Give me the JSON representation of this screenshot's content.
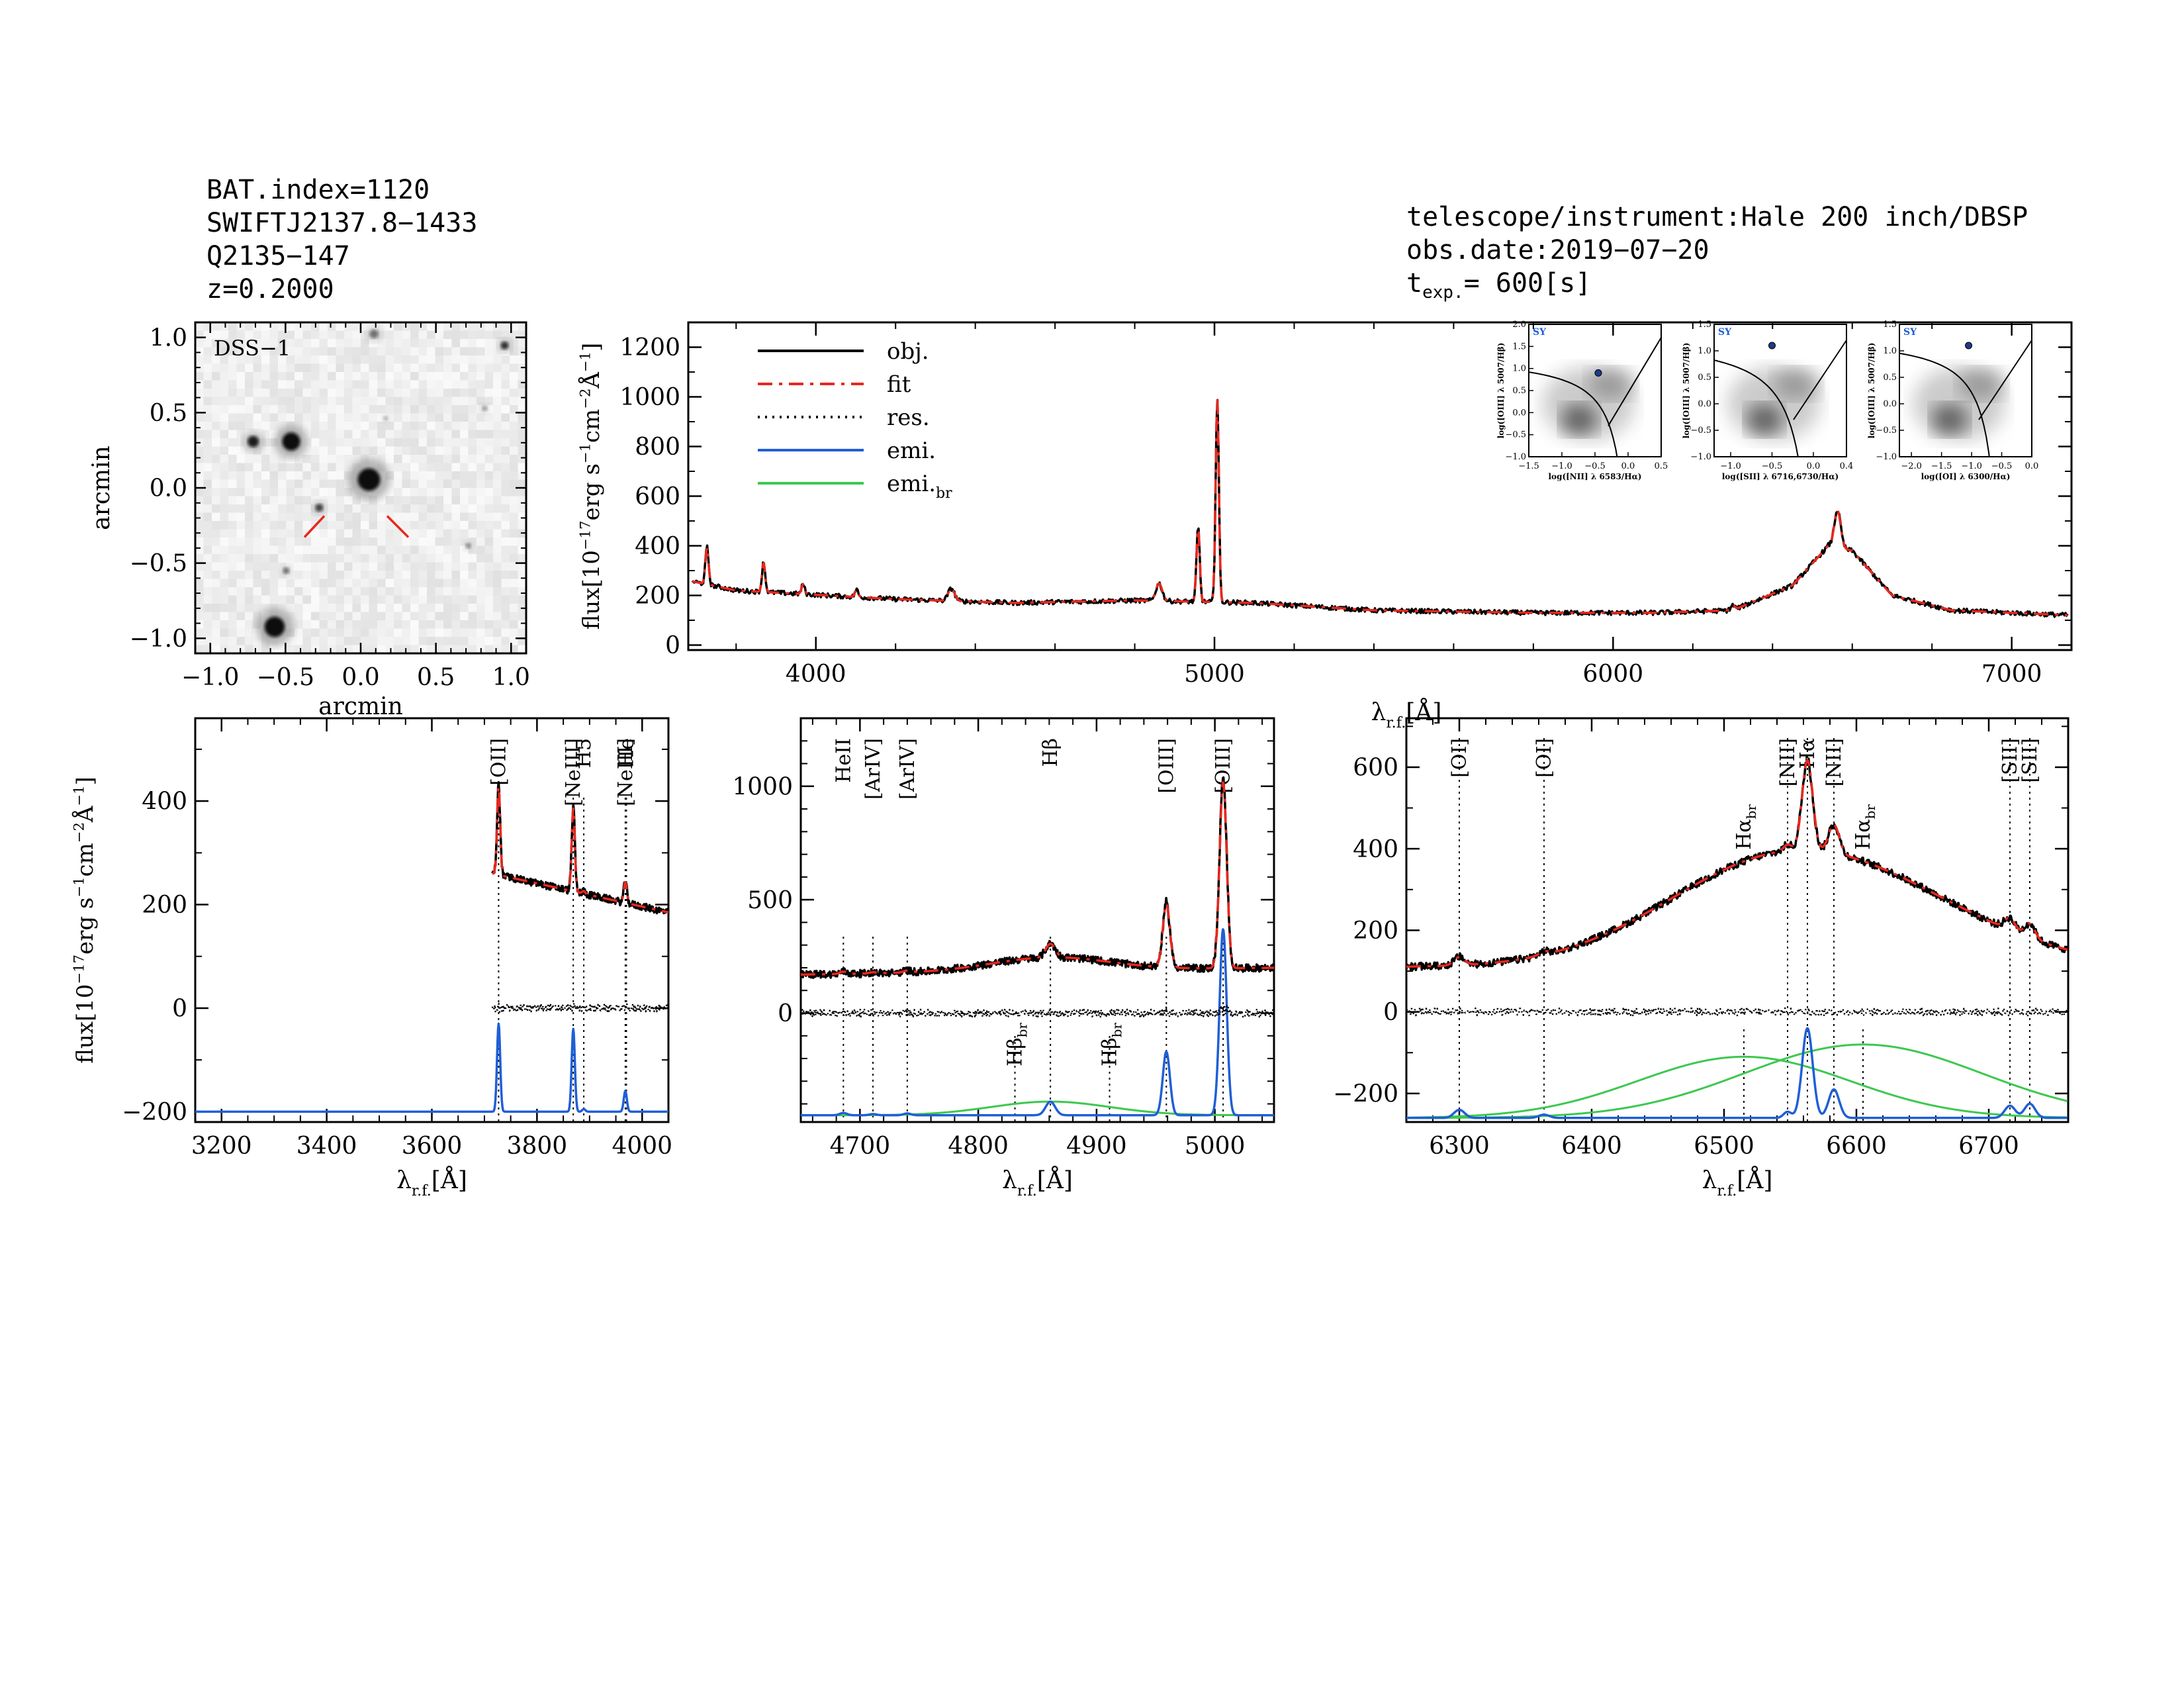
{
  "header_left": {
    "bat_index": "BAT.index=1120",
    "swift_name": "SWIFTJ2137.8−1433",
    "counterpart": "Q2135−147",
    "redshift": "z=0.2000"
  },
  "header_right": {
    "instrument": "telescope/instrument:Hale 200 inch/DBSP",
    "obs_date": "obs.date:2019−07−20",
    "texp_prefix": "t",
    "texp_sub": "exp.",
    "texp_value": "= 600[s]"
  },
  "colors": {
    "obj": "#000000",
    "fit": "#e8281e",
    "res": "#000000",
    "emi": "#1f5fd6",
    "emi_br": "#3cc850",
    "grid_tick": "#000000",
    "sy_label": "#1f5fd6"
  },
  "image_panel": {
    "label": "DSS−1",
    "xlabel": "arcmin",
    "ylabel": "arcmin",
    "xticks": [
      "−1.0",
      "−0.5",
      "0.0",
      "0.5",
      "1.0"
    ],
    "yticks": [
      "1.0",
      "0.5",
      "0.0",
      "−0.5",
      "−1.0"
    ]
  },
  "legend": {
    "obj": "obj.",
    "fit": "fit",
    "res": "res.",
    "emi": "emi.",
    "emi_br_main": "emi.",
    "emi_br_sub": "br"
  },
  "ylabel_flux": {
    "main": "flux[10",
    "exp1": "−17",
    "mid": "erg s",
    "exp2": "−1",
    "mid2": "cm",
    "exp3": "−2",
    "end": "Å",
    "exp4": "−1",
    "close": "]"
  },
  "xlabel_lambda": {
    "main": "λ",
    "sub": "r.f.",
    "unit": "[Å]"
  },
  "bpt": {
    "sy_label": "SY",
    "panels": [
      {
        "xlabel": "log([NII] λ 6583/Hα)",
        "ylabel": "log([OIII] λ 5007/Hβ)",
        "xticks": [
          "−1.5",
          "−1.0",
          "−0.5",
          "0.0",
          "0.5"
        ],
        "yticks": [
          "2.0",
          "1.5",
          "1.0",
          "0.5",
          "0.0",
          "−0.5",
          "−1.0"
        ],
        "xlim": [
          -1.5,
          0.5
        ],
        "ylim": [
          -1.0,
          2.0
        ],
        "point": [
          -0.45,
          0.9
        ]
      },
      {
        "xlabel": "log([SII] λ 6716,6730/Hα)",
        "ylabel": "log([OIII] λ 5007/Hβ)",
        "xticks": [
          "−1.0",
          "−0.5",
          "0.0",
          "0.4"
        ],
        "yticks": [
          "1.5",
          "1.0",
          "0.5",
          "0.0",
          "−0.5",
          "−1.0"
        ],
        "xlim": [
          -1.2,
          0.4
        ],
        "ylim": [
          -1.0,
          1.5
        ],
        "point": [
          -0.5,
          1.1
        ]
      },
      {
        "xlabel": "log([OI] λ 6300/Hα)",
        "ylabel": "log([OIII] λ 5007/Hβ)",
        "xticks": [
          "−2.0",
          "−1.5",
          "−1.0",
          "−0.5",
          "0.0"
        ],
        "yticks": [
          "1.5",
          "1.0",
          "0.5",
          "0.0",
          "−0.5",
          "−1.0"
        ],
        "xlim": [
          -2.2,
          0.0
        ],
        "ylim": [
          -1.0,
          1.5
        ],
        "point": [
          -1.05,
          1.1
        ]
      }
    ]
  },
  "chart_data": [
    {
      "type": "line",
      "panel": "main",
      "xlim": [
        3680,
        7150
      ],
      "ylim": [
        -20,
        1300
      ],
      "xticks": [
        4000,
        5000,
        6000,
        7000
      ],
      "yticks": [
        0,
        200,
        400,
        600,
        800,
        1000,
        1200
      ],
      "continuum_points": [
        [
          3680,
          260
        ],
        [
          3800,
          220
        ],
        [
          4200,
          185
        ],
        [
          4500,
          170
        ],
        [
          4800,
          180
        ],
        [
          5100,
          170
        ],
        [
          5400,
          140
        ],
        [
          5800,
          130
        ],
        [
          6100,
          130
        ],
        [
          6300,
          140
        ],
        [
          6450,
          240
        ],
        [
          6540,
          400
        ],
        [
          6600,
          380
        ],
        [
          6700,
          200
        ],
        [
          6850,
          140
        ],
        [
          7150,
          120
        ]
      ],
      "lines": [
        [
          3727,
          150,
          4
        ],
        [
          3869,
          120,
          4
        ],
        [
          3968,
          40,
          4
        ],
        [
          4102,
          30,
          4
        ],
        [
          4340,
          50,
          8
        ],
        [
          4861,
          70,
          8
        ],
        [
          4959,
          300,
          4
        ],
        [
          5007,
          820,
          4
        ],
        [
          6563,
          150,
          8
        ],
        [
          6300,
          20,
          5
        ]
      ]
    },
    {
      "type": "line",
      "panel": "zoom-oii",
      "xlim": [
        3150,
        4050
      ],
      "ylim": [
        -220,
        560
      ],
      "xticks": [
        3200,
        3400,
        3600,
        3800,
        4000
      ],
      "yticks": [
        -200,
        0,
        200,
        400
      ],
      "data_xrange": [
        3715,
        4050
      ],
      "continuum": [
        [
          3715,
          260
        ],
        [
          4050,
          185
        ]
      ],
      "emission": [
        [
          3727,
          170,
          3
        ],
        [
          3869,
          160,
          3
        ],
        [
          3889,
          5,
          3
        ],
        [
          3968,
          40,
          3
        ]
      ],
      "emi_offset": -200,
      "line_ids": [
        [
          "[OII]",
          3727
        ],
        [
          "[NeIII]",
          3869
        ],
        [
          "H5",
          3889
        ],
        [
          "[NeIII]",
          3968
        ],
        [
          "He",
          3970
        ]
      ]
    },
    {
      "type": "line",
      "panel": "zoom-hbeta",
      "xlim": [
        4650,
        5050
      ],
      "ylim": [
        -480,
        1300
      ],
      "xticks": [
        4700,
        4800,
        4900,
        5000
      ],
      "yticks": [
        0,
        500,
        1000
      ],
      "continuum": [
        [
          4650,
          170
        ],
        [
          5050,
          200
        ]
      ],
      "emission": [
        [
          4686,
          10,
          3
        ],
        [
          4711,
          5,
          3
        ],
        [
          4740,
          8,
          3
        ],
        [
          4861,
          60,
          4
        ],
        [
          4959,
          280,
          3
        ],
        [
          5007,
          820,
          3
        ]
      ],
      "broad": [
        [
          4861,
          60,
          50
        ]
      ],
      "emi_offset": -450,
      "line_ids": [
        [
          "HeII",
          4686
        ],
        [
          "[ArIV]",
          4711
        ],
        [
          "[ArIV]",
          4740
        ],
        [
          "Hβ",
          4861
        ],
        [
          "[OIII]",
          4959
        ],
        [
          "[OIII]",
          5007
        ]
      ],
      "broad_ids": [
        [
          "Hβ",
          4831
        ],
        [
          "Hβ",
          4911
        ]
      ]
    },
    {
      "type": "line",
      "panel": "zoom-halpha",
      "xlim": [
        6260,
        6760
      ],
      "ylim": [
        -270,
        720
      ],
      "xticks": [
        6300,
        6400,
        6500,
        6600,
        6700
      ],
      "yticks": [
        -200,
        0,
        200,
        400,
        600
      ],
      "continuum": [
        [
          6260,
          110
        ],
        [
          6760,
          110
        ]
      ],
      "emission": [
        [
          6300,
          20,
          4
        ],
        [
          6364,
          8,
          4
        ],
        [
          6548,
          15,
          3
        ],
        [
          6563,
          220,
          4
        ],
        [
          6583,
          70,
          4
        ],
        [
          6716,
          30,
          4
        ],
        [
          6731,
          35,
          4
        ]
      ],
      "broad": [
        [
          6515,
          150,
          80
        ],
        [
          6605,
          180,
          90
        ]
      ],
      "emi_offset": -260,
      "line_ids": [
        [
          "[OI]",
          6300
        ],
        [
          "[OI]",
          6364
        ],
        [
          "[NII]",
          6548
        ],
        [
          "Hα",
          6563
        ],
        [
          "[NII]",
          6583
        ],
        [
          "[SII]",
          6716
        ],
        [
          "[SII]",
          6731
        ]
      ],
      "broad_ids": [
        [
          "Hα",
          6515
        ],
        [
          "Hα",
          6605
        ]
      ]
    }
  ]
}
